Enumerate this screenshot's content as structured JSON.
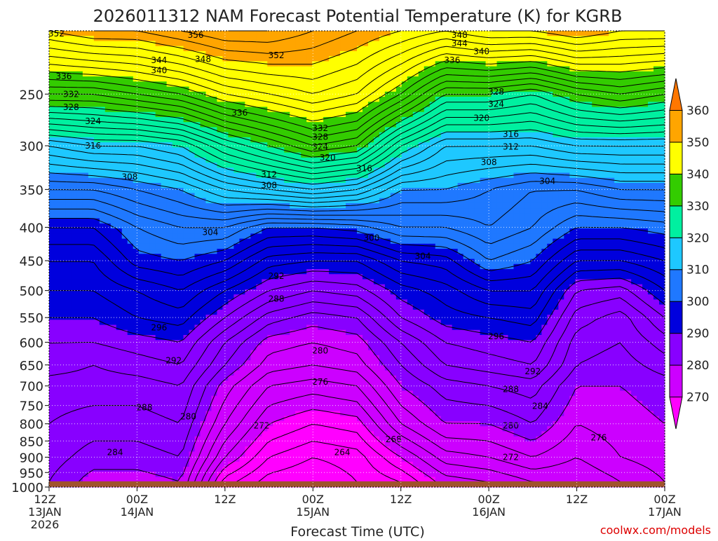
{
  "chart_data": {
    "type": "contour",
    "title": "2026011312 NAM Forecast Potential Temperature (K) for KGRB",
    "xlabel": "Forecast Time (UTC)",
    "ylabel": "",
    "credit": "coolwx.com/models",
    "x_ticks": [
      {
        "hour": 0,
        "l1": "12Z",
        "l2": "13JAN",
        "l3": "2026"
      },
      {
        "hour": 12,
        "l1": "00Z",
        "l2": "14JAN",
        "l3": ""
      },
      {
        "hour": 24,
        "l1": "12Z",
        "l2": "",
        "l3": ""
      },
      {
        "hour": 36,
        "l1": "00Z",
        "l2": "15JAN",
        "l3": ""
      },
      {
        "hour": 48,
        "l1": "12Z",
        "l2": "",
        "l3": ""
      },
      {
        "hour": 60,
        "l1": "00Z",
        "l2": "16JAN",
        "l3": ""
      },
      {
        "hour": 72,
        "l1": "12Z",
        "l2": "",
        "l3": ""
      },
      {
        "hour": 84,
        "l1": "00Z",
        "l2": "17JAN",
        "l3": ""
      }
    ],
    "xlim": [
      0,
      84
    ],
    "y_ticks": [
      250,
      300,
      350,
      400,
      450,
      500,
      550,
      600,
      650,
      700,
      750,
      800,
      850,
      900,
      950,
      1000
    ],
    "ylim": [
      1000,
      200
    ],
    "y_scale": "log-pressure",
    "ground_pressure": 980,
    "colorbar": {
      "levels": [
        270,
        280,
        290,
        300,
        310,
        320,
        330,
        340,
        350,
        360
      ],
      "colors": [
        "#ff00ff",
        "#cc00ff",
        "#8800ff",
        "#0000dd",
        "#1f78ff",
        "#1ec8ff",
        "#00f0a0",
        "#33cc00",
        "#ffff00",
        "#ffa500",
        "#ff7700"
      ]
    },
    "contour_interval": 2,
    "profiles": [
      {
        "hour": 0,
        "theta": [
          350,
          334,
          316,
          306,
          298,
          294,
          292,
          290,
          288,
          287,
          285,
          284,
          283,
          282
        ]
      },
      {
        "hour": 6,
        "theta": [
          352,
          334,
          318,
          306,
          298,
          294,
          292,
          290,
          288,
          286,
          285,
          283,
          281,
          279
        ]
      },
      {
        "hour": 12,
        "theta": [
          352,
          336,
          318,
          308,
          302,
          299,
          294,
          292,
          289,
          287,
          285,
          283,
          281,
          279
        ]
      },
      {
        "hour": 18,
        "theta": [
          354,
          338,
          320,
          310,
          304,
          300,
          296,
          293,
          290,
          288,
          286,
          284,
          282,
          280
        ]
      },
      {
        "hour": 24,
        "theta": [
          356,
          342,
          326,
          314,
          304,
          298,
          292,
          288,
          284,
          282,
          279,
          276,
          272,
          267
        ]
      },
      {
        "hour": 30,
        "theta": [
          356,
          344,
          330,
          316,
          300,
          293,
          288,
          283,
          279,
          277,
          274,
          270,
          266,
          263
        ]
      },
      {
        "hour": 36,
        "theta": [
          354,
          346,
          334,
          318,
          300,
          292,
          286,
          281,
          278,
          276,
          273,
          268,
          264,
          262
        ]
      },
      {
        "hour": 42,
        "theta": [
          352,
          344,
          332,
          316,
          301,
          292,
          287,
          282,
          279,
          277,
          274,
          269,
          265,
          264
        ]
      },
      {
        "hour": 48,
        "theta": [
          350,
          338,
          322,
          310,
          304,
          296,
          291,
          288,
          284,
          282,
          280,
          276,
          270,
          266
        ]
      },
      {
        "hour": 54,
        "theta": [
          348,
          330,
          316,
          310,
          304,
          297,
          293,
          291,
          288,
          286,
          283,
          280,
          275,
          271
        ]
      },
      {
        "hour": 60,
        "theta": [
          350,
          330,
          316,
          308,
          306,
          302,
          296,
          292,
          289,
          287,
          284,
          280,
          276,
          272
        ]
      },
      {
        "hour": 66,
        "theta": [
          350,
          328,
          316,
          306,
          304,
          300,
          296,
          293,
          290,
          288,
          285,
          282,
          278,
          274
        ]
      },
      {
        "hour": 72,
        "theta": [
          352,
          332,
          318,
          306,
          300,
          294,
          288,
          285,
          283,
          282,
          280,
          278,
          276,
          274
        ]
      },
      {
        "hour": 78,
        "theta": [
          350,
          334,
          318,
          308,
          300,
          294,
          287,
          283,
          282,
          281,
          280,
          279,
          278,
          276
        ]
      },
      {
        "hour": 84,
        "theta": [
          350,
          332,
          318,
          308,
          301,
          296,
          292,
          288,
          285,
          283,
          281,
          280,
          279,
          278
        ]
      }
    ],
    "profile_pressures": [
      200,
      250,
      300,
      350,
      400,
      450,
      500,
      550,
      600,
      650,
      700,
      800,
      900,
      980
    ],
    "contour_labels": [
      {
        "text": "352",
        "hour": 1,
        "p": 202
      },
      {
        "text": "356",
        "hour": 20,
        "p": 203
      },
      {
        "text": "348",
        "hour": 21,
        "p": 221
      },
      {
        "text": "344",
        "hour": 15,
        "p": 222
      },
      {
        "text": "340",
        "hour": 15,
        "p": 230
      },
      {
        "text": "352",
        "hour": 31,
        "p": 218
      },
      {
        "text": "348",
        "hour": 56,
        "p": 203
      },
      {
        "text": "344",
        "hour": 56,
        "p": 209
      },
      {
        "text": "340",
        "hour": 59,
        "p": 215
      },
      {
        "text": "336",
        "hour": 55,
        "p": 222
      },
      {
        "text": "336",
        "hour": 2,
        "p": 235
      },
      {
        "text": "332",
        "hour": 3,
        "p": 250
      },
      {
        "text": "328",
        "hour": 3,
        "p": 262
      },
      {
        "text": "324",
        "hour": 6,
        "p": 275
      },
      {
        "text": "316",
        "hour": 6,
        "p": 300
      },
      {
        "text": "336",
        "hour": 26,
        "p": 267
      },
      {
        "text": "332",
        "hour": 37,
        "p": 282
      },
      {
        "text": "328",
        "hour": 37,
        "p": 291
      },
      {
        "text": "324",
        "hour": 37,
        "p": 301
      },
      {
        "text": "320",
        "hour": 38,
        "p": 313
      },
      {
        "text": "316",
        "hour": 43,
        "p": 325
      },
      {
        "text": "312",
        "hour": 30,
        "p": 332
      },
      {
        "text": "308",
        "hour": 30,
        "p": 345
      },
      {
        "text": "308",
        "hour": 11,
        "p": 335
      },
      {
        "text": "304",
        "hour": 22,
        "p": 407
      },
      {
        "text": "300",
        "hour": 44,
        "p": 415
      },
      {
        "text": "304",
        "hour": 51,
        "p": 443
      },
      {
        "text": "292",
        "hour": 31,
        "p": 475
      },
      {
        "text": "288",
        "hour": 31,
        "p": 515
      },
      {
        "text": "296",
        "hour": 15,
        "p": 570
      },
      {
        "text": "292",
        "hour": 17,
        "p": 640
      },
      {
        "text": "288",
        "hour": 13,
        "p": 755
      },
      {
        "text": "284",
        "hour": 9,
        "p": 885
      },
      {
        "text": "280",
        "hour": 19,
        "p": 780
      },
      {
        "text": "272",
        "hour": 29,
        "p": 805
      },
      {
        "text": "280",
        "hour": 37,
        "p": 618
      },
      {
        "text": "276",
        "hour": 37,
        "p": 690
      },
      {
        "text": "268",
        "hour": 47,
        "p": 845
      },
      {
        "text": "264",
        "hour": 40,
        "p": 885
      },
      {
        "text": "328",
        "hour": 61,
        "p": 248
      },
      {
        "text": "324",
        "hour": 61,
        "p": 259
      },
      {
        "text": "320",
        "hour": 59,
        "p": 272
      },
      {
        "text": "316",
        "hour": 63,
        "p": 288
      },
      {
        "text": "312",
        "hour": 63,
        "p": 301
      },
      {
        "text": "308",
        "hour": 60,
        "p": 318
      },
      {
        "text": "304",
        "hour": 68,
        "p": 340
      },
      {
        "text": "296",
        "hour": 61,
        "p": 588
      },
      {
        "text": "292",
        "hour": 66,
        "p": 665
      },
      {
        "text": "288",
        "hour": 63,
        "p": 708
      },
      {
        "text": "284",
        "hour": 67,
        "p": 752
      },
      {
        "text": "280",
        "hour": 63,
        "p": 805
      },
      {
        "text": "272",
        "hour": 63,
        "p": 900
      },
      {
        "text": "276",
        "hour": 75,
        "p": 840
      }
    ]
  }
}
